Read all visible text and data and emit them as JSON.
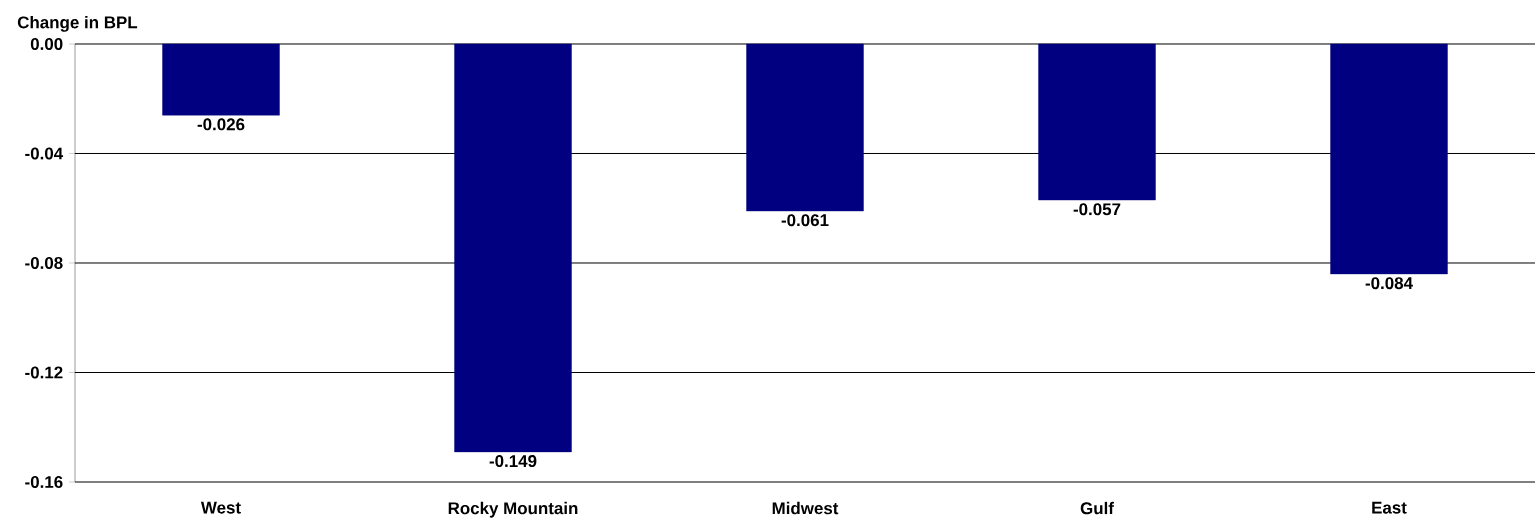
{
  "chart_data": {
    "type": "bar",
    "ylabel": "Change in BPL",
    "categories": [
      "West",
      "Rocky Mountain",
      "Midwest",
      "Gulf",
      "East"
    ],
    "values": [
      -0.026,
      -0.149,
      -0.061,
      -0.057,
      -0.084
    ],
    "value_labels": [
      "-0.026",
      "-0.149",
      "-0.061",
      "-0.057",
      "-0.084"
    ],
    "color": "#000080",
    "ylim": [
      -0.16,
      0
    ],
    "yticks": [
      -0.16,
      -0.12,
      -0.08,
      -0.04,
      {
        "value": 0,
        "label": "0.00"
      }
    ],
    "grid": "y"
  }
}
